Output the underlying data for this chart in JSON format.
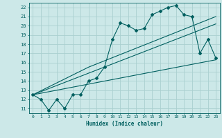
{
  "xlabel": "Humidex (Indice chaleur)",
  "ylabel": "",
  "background_color": "#cce8e8",
  "grid_color": "#aad0d0",
  "line_color": "#005f5f",
  "xlim": [
    -0.5,
    23.5
  ],
  "ylim": [
    10.5,
    22.5
  ],
  "xticks": [
    0,
    1,
    2,
    3,
    4,
    5,
    6,
    7,
    8,
    9,
    10,
    11,
    12,
    13,
    14,
    15,
    16,
    17,
    18,
    19,
    20,
    21,
    22,
    23
  ],
  "yticks": [
    11,
    12,
    13,
    14,
    15,
    16,
    17,
    18,
    19,
    20,
    21,
    22
  ],
  "series1_x": [
    0,
    1,
    2,
    3,
    4,
    5,
    6,
    7,
    8,
    9,
    10,
    11,
    12,
    13,
    14,
    15,
    16,
    17,
    18,
    19,
    20,
    21,
    22,
    23
  ],
  "series1_y": [
    12.5,
    12.0,
    10.8,
    12.0,
    11.0,
    12.5,
    12.5,
    14.0,
    14.3,
    15.5,
    18.5,
    20.3,
    20.0,
    19.5,
    19.7,
    21.2,
    21.6,
    22.0,
    22.2,
    21.2,
    21.0,
    17.0,
    18.5,
    16.5
  ],
  "series2_x": [
    0,
    23
  ],
  "series2_y": [
    12.5,
    20.2
  ],
  "series3_x": [
    0,
    23
  ],
  "series3_y": [
    12.5,
    16.3
  ],
  "series4_x": [
    0,
    7,
    23
  ],
  "series4_y": [
    12.5,
    15.5,
    21.0
  ]
}
